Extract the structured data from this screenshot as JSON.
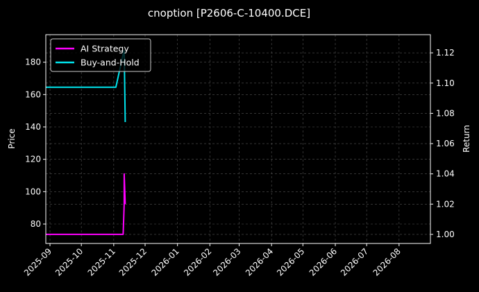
{
  "chart_data": {
    "type": "line",
    "title": "cnoption [P2606-C-10400.DCE]",
    "ylabel": "Price",
    "y2label": "Return",
    "xlim": [
      "2025-08-28",
      "2026-08-31"
    ],
    "ylim": [
      68,
      197
    ],
    "y2lim": [
      0.994,
      1.132
    ],
    "x_ticks": [
      "2025-09",
      "2025-10",
      "2025-11",
      "2025-12",
      "2026-01",
      "2026-02",
      "2026-03",
      "2026-04",
      "2026-05",
      "2026-06",
      "2026-07",
      "2026-08"
    ],
    "y_ticks": [
      80,
      100,
      120,
      140,
      160,
      180
    ],
    "y2_ticks": [
      "1.00",
      "1.02",
      "1.04",
      "1.06",
      "1.08",
      "1.10",
      "1.12"
    ],
    "grid": true,
    "legend_position": "top-left",
    "series": [
      {
        "name": "AI Strategy",
        "color": "#ff00ff",
        "axis": "right",
        "points": [
          {
            "x": "2025-08-28",
            "y": 1.0
          },
          {
            "x": "2025-11-10",
            "y": 1.0
          },
          {
            "x": "2025-11-11",
            "y": 1.02
          },
          {
            "x": "2025-11-11",
            "y": 1.04
          },
          {
            "x": "2025-11-12",
            "y": 1.02
          }
        ]
      },
      {
        "name": "Buy-and-Hold",
        "color": "#00e5ee",
        "axis": "left",
        "points": [
          {
            "x": "2025-08-28",
            "y": 164.5
          },
          {
            "x": "2025-11-03",
            "y": 164.5
          },
          {
            "x": "2025-11-10",
            "y": 185
          },
          {
            "x": "2025-11-11",
            "y": 187
          },
          {
            "x": "2025-11-12",
            "y": 143
          }
        ]
      }
    ]
  }
}
